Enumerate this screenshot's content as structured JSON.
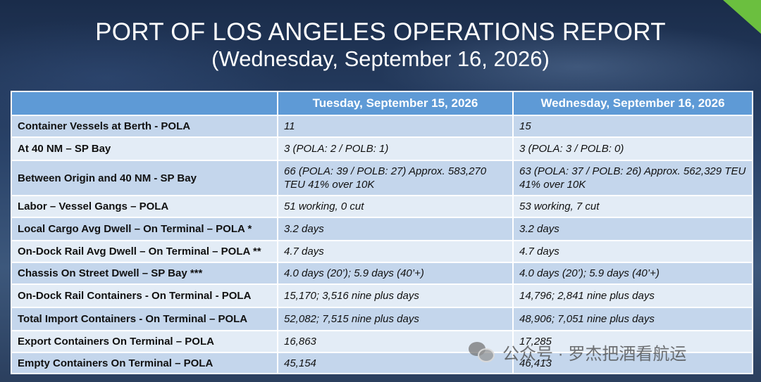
{
  "title": "PORT OF LOS ANGELES OPERATIONS REPORT",
  "subtitle": "(Wednesday, September 16, 2026)",
  "table": {
    "headers": [
      "",
      "Tuesday, September 15, 2026",
      "Wednesday, September 16, 2026"
    ],
    "rows": [
      {
        "label": "Container Vessels at Berth - POLA",
        "tue": "11",
        "wed": "15"
      },
      {
        "label": "At 40 NM – SP Bay",
        "tue": "3 (POLA: 2 / POLB: 1)",
        "wed": "3 (POLA: 3 / POLB: 0)"
      },
      {
        "label": "Between Origin and 40 NM - SP Bay",
        "tue": "66 (POLA: 39 / POLB: 27) Approx. 583,270 TEU 41% over 10K",
        "wed": "63 (POLA: 37 / POLB: 26) Approx. 562,329 TEU 41% over 10K"
      },
      {
        "label": "Labor – Vessel Gangs – POLA",
        "tue": "51 working, 0 cut",
        "wed": "53 working, 7 cut"
      },
      {
        "label": "Local Cargo Avg Dwell – On Terminal – POLA *",
        "tue": "3.2 days",
        "wed": "3.2 days"
      },
      {
        "label": "On-Dock Rail Avg Dwell – On Terminal – POLA **",
        "tue": "4.7 days",
        "wed": "4.7 days"
      },
      {
        "label": "Chassis On Street Dwell – SP Bay ***",
        "tue": "4.0 days (20’); 5.9 days (40’+)",
        "wed": "4.0 days (20’); 5.9 days (40’+)"
      },
      {
        "label": "On-Dock Rail Containers - On Terminal - POLA",
        "tue": "15,170; 3,516 nine plus days",
        "wed": "14,796; 2,841 nine plus days"
      },
      {
        "label": "Total Import Containers - On Terminal – POLA",
        "tue": "52,082; 7,515 nine plus days",
        "wed": "48,906; 7,051 nine plus days"
      },
      {
        "label": "Export Containers On Terminal – POLA",
        "tue": "16,863",
        "wed": "17,285"
      },
      {
        "label": "Empty Containers On Terminal – POLA",
        "tue": "45,154",
        "wed": "46,413"
      }
    ]
  },
  "watermark": {
    "text": "公众号 · 罗杰把酒看航运",
    "icon": "wechat-icon"
  },
  "colors": {
    "header_bg": "#5e9ad6",
    "row_odd": "#c4d6ec",
    "row_even": "#e3ecf6",
    "corner_accent": "#6bbf3f"
  }
}
